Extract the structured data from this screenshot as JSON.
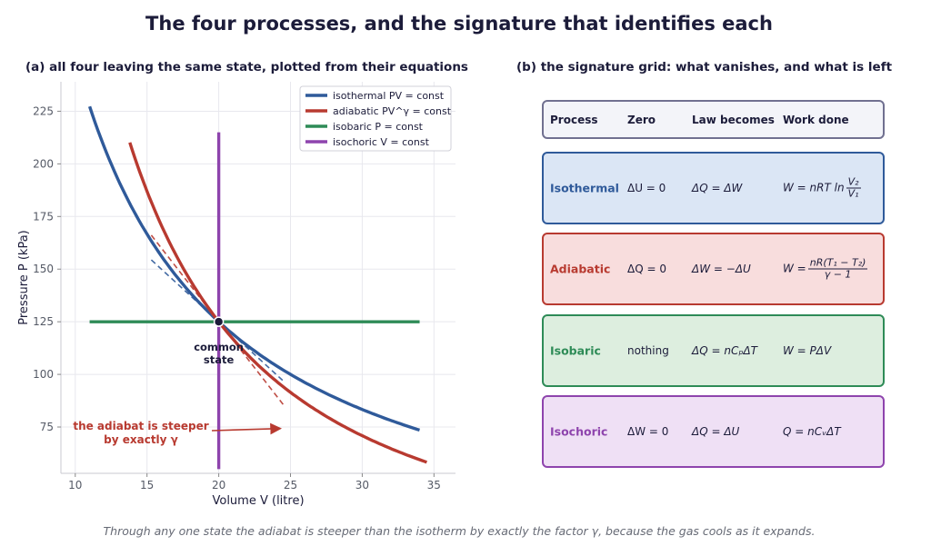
{
  "title": "The four processes, and the signature that identifies each",
  "panel_a_title": "(a) all four leaving the same state, plotted from their equations",
  "panel_b_title": "(b) the signature grid: what vanishes, and what is left",
  "footer": "Through any one state the adiabat is steeper than the isotherm by exactly the factor γ, because the gas cools as it expands.",
  "chart_data": {
    "type": "line",
    "xlabel": "Volume V (litre)",
    "ylabel": "Pressure P (kPa)",
    "xlim": [
      9,
      36.5
    ],
    "ylim": [
      53,
      239
    ],
    "xticks": [
      10,
      15,
      20,
      25,
      30,
      35
    ],
    "yticks": [
      75,
      100,
      125,
      150,
      175,
      200,
      225
    ],
    "grid": true,
    "legend_position": "top-right",
    "common_state": {
      "V": 20,
      "P": 125,
      "label": "common state"
    },
    "gamma": 1.4,
    "series": [
      {
        "name": "isothermal  PV = const",
        "color": "#2f5a9a",
        "x_range": [
          11,
          34
        ],
        "equation": "P = 2500 / V"
      },
      {
        "name": "adiabatic  PV^γ = const",
        "color": "#b83a30",
        "x_range": [
          13.8,
          34.5
        ],
        "equation": "P = 125 · (20 / V)^1.4"
      },
      {
        "name": "isobaric  P = const",
        "color": "#2e8b57",
        "x_range": [
          11,
          34
        ],
        "equation": "P = 125"
      },
      {
        "name": "isochoric  V = const",
        "color": "#8e44ad",
        "y_range": [
          55,
          215
        ],
        "equation": "V = 20"
      }
    ],
    "tangents": [
      {
        "of": "isothermal",
        "x_range": [
          15.3,
          24.6
        ],
        "slope": -6.25
      },
      {
        "of": "adiabatic",
        "x_range": [
          15.3,
          24.6
        ],
        "slope": -8.75
      }
    ],
    "annotation": {
      "text_line1": "the adiabat is steeper",
      "text_line2": "by exactly γ",
      "arrow_to": {
        "V": 24.3,
        "P": 74.3
      }
    }
  },
  "grid": {
    "header": {
      "process": "Process",
      "zero": "Zero",
      "law": "Law becomes",
      "work": "Work done"
    },
    "rows": [
      {
        "process": "Isothermal",
        "zero": "ΔU = 0",
        "law": "ΔQ = ΔW",
        "work_prefix": "W = nRT ln",
        "work_num": "V₂",
        "work_den": "V₁",
        "color": "#2f5a9a",
        "bg": "#dbe6f5"
      },
      {
        "process": "Adiabatic",
        "zero": "ΔQ = 0",
        "law": "ΔW = −ΔU",
        "work_prefix": "W =",
        "work_num": "nR(T₁ − T₂)",
        "work_den": "γ − 1",
        "color": "#b83a30",
        "bg": "#f8dddd"
      },
      {
        "process": "Isobaric",
        "zero": "nothing",
        "law": "ΔQ = nCₚΔT",
        "work_prefix": "W = PΔV",
        "color": "#2e8b57",
        "bg": "#ddeedf"
      },
      {
        "process": "Isochoric",
        "zero": "ΔW = 0",
        "law": "ΔQ = ΔU",
        "work_prefix": "Q = nCᵥΔT",
        "color": "#8e44ad",
        "bg": "#efe0f5"
      }
    ]
  }
}
